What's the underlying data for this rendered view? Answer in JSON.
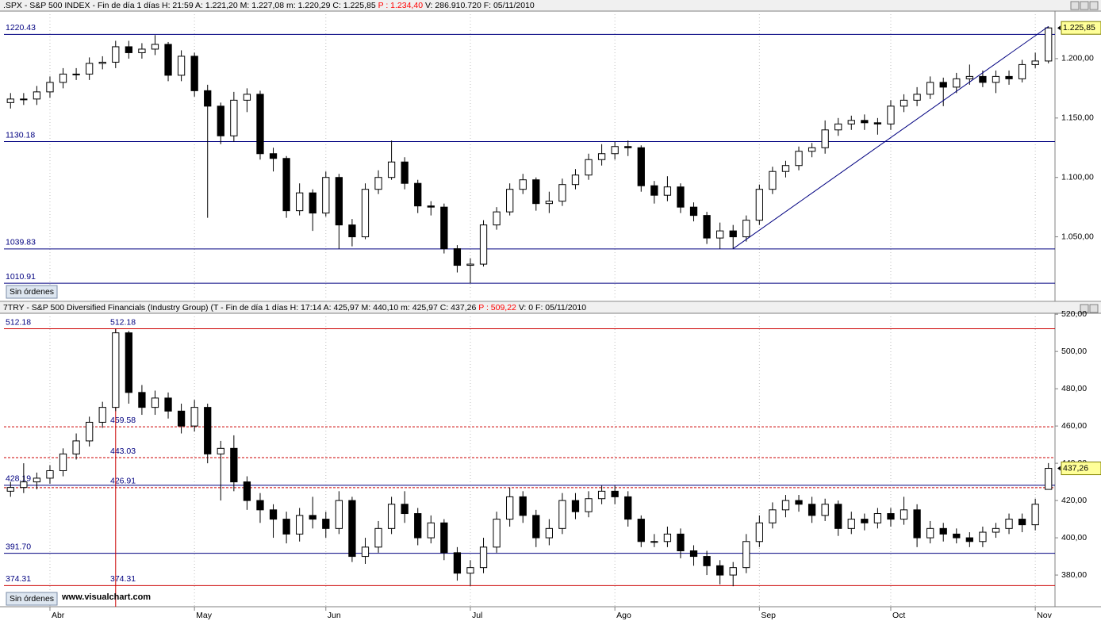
{
  "chart_data": [
    {
      "type": "candlestick",
      "header": [
        {
          "text": ".SPX - S&P 500 INDEX - Fin de día 1 días  H: 21:59  A: 1.221,20  M: 1.227,08  m: 1.220,29  C: 1.225,85  ",
          "color": "#000000"
        },
        {
          "text": "P : 1.234,40",
          "color": "#ff0000"
        },
        {
          "text": "  V: 286.910.720  F: 05/11/2010",
          "color": "#000000"
        }
      ],
      "orders_label": "Sin órdenes",
      "last_label": "1.225,85",
      "trendline": true,
      "ylim": [
        997,
        1240
      ],
      "yticks": [
        {
          "value": 1050,
          "label": "1.050,00"
        },
        {
          "value": 1100,
          "label": "1.100,00"
        },
        {
          "value": 1150,
          "label": "1.150,00"
        },
        {
          "value": 1200,
          "label": "1.200,00"
        }
      ],
      "levels": [
        {
          "value": 1220.43,
          "color": "#000080",
          "style": "solid",
          "position": "left"
        },
        {
          "value": 1130.18,
          "color": "#000080",
          "style": "solid",
          "position": "left"
        },
        {
          "value": 1039.83,
          "color": "#000080",
          "style": "solid",
          "position": "left"
        },
        {
          "value": 1010.91,
          "color": "#000080",
          "style": "solid",
          "position": "left"
        }
      ],
      "open": [
        1163,
        1166,
        1166,
        1172,
        1180,
        1187,
        1187,
        1196,
        1197,
        1210,
        1205,
        1208,
        1212,
        1186,
        1202,
        1173,
        1160,
        1135,
        1165,
        1170,
        1120,
        1116,
        1072,
        1087,
        1070,
        1100,
        1060,
        1050,
        1090,
        1100,
        1113,
        1095,
        1076,
        1075,
        1040,
        1026,
        1027,
        1060,
        1071,
        1090,
        1098,
        1078,
        1080,
        1094,
        1102,
        1115,
        1120,
        1126,
        1125,
        1093,
        1085,
        1092,
        1075,
        1068,
        1049,
        1055,
        1050,
        1064,
        1090,
        1105,
        1110,
        1122,
        1125,
        1140,
        1145,
        1148,
        1146,
        1145,
        1160,
        1165,
        1170,
        1180,
        1176,
        1183,
        1185,
        1180,
        1185,
        1183,
        1195,
        1198
      ],
      "high": [
        1171,
        1171,
        1177,
        1185,
        1192,
        1192,
        1201,
        1202,
        1215,
        1215,
        1213,
        1219.8,
        1214,
        1207,
        1205,
        1178,
        1163,
        1172,
        1175,
        1173,
        1125,
        1118,
        1095,
        1090,
        1105,
        1103,
        1065,
        1095,
        1106,
        1131,
        1117,
        1098,
        1080,
        1078,
        1043,
        1032,
        1064,
        1075,
        1095,
        1103,
        1100,
        1088,
        1099,
        1107,
        1120,
        1128,
        1130,
        1131,
        1127,
        1097,
        1101,
        1095,
        1079,
        1071,
        1062,
        1060,
        1068,
        1094,
        1109,
        1114,
        1126,
        1129,
        1148,
        1150,
        1152,
        1153,
        1150,
        1165,
        1170,
        1176,
        1185,
        1184,
        1188,
        1195,
        1190,
        1190,
        1190,
        1199,
        1205,
        1227.08
      ],
      "low": [
        1158,
        1161,
        1161,
        1167,
        1175,
        1182,
        1182,
        1191,
        1192,
        1200,
        1200,
        1203,
        1181,
        1181,
        1168,
        1066,
        1128,
        1130,
        1155,
        1115,
        1105,
        1066,
        1068,
        1055,
        1067,
        1040,
        1042,
        1048,
        1086,
        1098,
        1090,
        1070,
        1068,
        1036,
        1020,
        1010.91,
        1025,
        1056,
        1068,
        1086,
        1072,
        1070,
        1076,
        1090,
        1098,
        1110,
        1115,
        1118,
        1088,
        1078,
        1080,
        1070,
        1063,
        1044,
        1040,
        1040,
        1046,
        1060,
        1086,
        1100,
        1106,
        1117,
        1120,
        1135,
        1140,
        1140,
        1136,
        1140,
        1155,
        1160,
        1166,
        1160,
        1171,
        1178,
        1176,
        1171,
        1178,
        1180,
        1192,
        1196
      ],
      "close": [
        1166,
        1166,
        1172,
        1180,
        1187,
        1187,
        1196,
        1197,
        1210,
        1205,
        1208,
        1212,
        1186,
        1202,
        1173,
        1160,
        1135,
        1165,
        1170,
        1120,
        1116,
        1072,
        1087,
        1070,
        1100,
        1060,
        1050,
        1090,
        1100,
        1113,
        1095,
        1076,
        1075,
        1040,
        1026,
        1027,
        1060,
        1071,
        1090,
        1098,
        1078,
        1080,
        1094,
        1102,
        1115,
        1120,
        1126,
        1125,
        1093,
        1085,
        1092,
        1075,
        1068,
        1049,
        1055,
        1050,
        1064,
        1090,
        1105,
        1110,
        1122,
        1125,
        1140,
        1145,
        1148,
        1146,
        1145,
        1160,
        1165,
        1170,
        1180,
        1176,
        1183,
        1185,
        1180,
        1185,
        1183,
        1195,
        1198,
        1225.85
      ]
    },
    {
      "type": "candlestick",
      "header": [
        {
          "text": "7TRY - S&P 500 Diversified Financials (Industry Group) (T - Fin de día 1 días  H: 17:14  A: 425,97  M: 440,10  m: 425,97  C: 437,26  ",
          "color": "#000000"
        },
        {
          "text": "P : 509,22",
          "color": "#ff0000"
        },
        {
          "text": "  V: 0  F: 05/11/2010",
          "color": "#000000"
        }
      ],
      "orders_label": "Sin órdenes",
      "watermark": "www.visualchart.com",
      "last_label": "437,26",
      "peak_marker": true,
      "categories": [
        null,
        null,
        null,
        "Abr",
        null,
        null,
        null,
        null,
        null,
        null,
        null,
        null,
        null,
        null,
        "May",
        null,
        null,
        null,
        null,
        null,
        null,
        null,
        null,
        null,
        "Jun",
        null,
        null,
        null,
        null,
        null,
        null,
        null,
        null,
        null,
        null,
        "Jul",
        null,
        null,
        null,
        null,
        null,
        null,
        null,
        null,
        null,
        null,
        "Ago",
        null,
        null,
        null,
        null,
        null,
        null,
        null,
        null,
        null,
        null,
        "Sep",
        null,
        null,
        null,
        null,
        null,
        null,
        null,
        null,
        null,
        "Oct",
        null,
        null,
        null,
        null,
        null,
        null,
        null,
        null,
        null,
        null,
        "Nov",
        null
      ],
      "ylim": [
        363,
        520.5
      ],
      "yticks": [
        {
          "value": 380,
          "label": "380,00"
        },
        {
          "value": 400,
          "label": "400,00"
        },
        {
          "value": 420,
          "label": "420,00"
        },
        {
          "value": 440,
          "label": "440,00"
        },
        {
          "value": 460,
          "label": "460,00"
        },
        {
          "value": 480,
          "label": "480,00"
        },
        {
          "value": 500,
          "label": "500,00"
        },
        {
          "value": 520,
          "label": "520,00"
        }
      ],
      "levels": [
        {
          "value": 512.18,
          "color": "#cc0000",
          "style": "solid",
          "position": "both"
        },
        {
          "value": 459.58,
          "color": "#cc0000",
          "style": "dashed",
          "position": "marker"
        },
        {
          "value": 443.03,
          "color": "#cc0000",
          "style": "dashed",
          "position": "marker"
        },
        {
          "value": 426.91,
          "color": "#cc0000",
          "style": "dashed",
          "position": "marker"
        },
        {
          "value": 428.19,
          "color": "#000080",
          "style": "solid",
          "position": "left"
        },
        {
          "value": 391.7,
          "label": "391.70",
          "color": "#000080",
          "style": "solid",
          "position": "left"
        },
        {
          "value": 374.31,
          "color": "#cc0000",
          "style": "solid",
          "position": "both"
        }
      ],
      "open": [
        425,
        427,
        430,
        432,
        436,
        445,
        452,
        462,
        470,
        510,
        478,
        470,
        475,
        468,
        460,
        470,
        445,
        448,
        430,
        420,
        415,
        410,
        402,
        412,
        410,
        405,
        420,
        390,
        395,
        405,
        418,
        413,
        400,
        408,
        392,
        381,
        384,
        395,
        410,
        422,
        412,
        400,
        405,
        420,
        414,
        421,
        425,
        422,
        410,
        398,
        398,
        402,
        393,
        390,
        385,
        380,
        384,
        398,
        408,
        415,
        420,
        418,
        412,
        418,
        405,
        410,
        408,
        413,
        410,
        415,
        400,
        405,
        402,
        400,
        398,
        403,
        405,
        410,
        407,
        425.97
      ],
      "high": [
        430,
        440,
        435,
        439,
        448,
        456,
        465,
        473,
        512.18,
        511,
        482,
        479,
        478,
        472,
        474,
        472,
        452,
        455,
        433,
        424,
        418,
        414,
        416,
        422,
        414,
        425,
        422,
        400,
        409,
        422,
        425,
        416,
        412,
        410,
        395,
        388,
        400,
        414,
        427,
        425,
        415,
        410,
        424,
        424,
        425,
        428,
        428,
        425,
        412,
        402,
        406,
        405,
        396,
        393,
        388,
        387,
        402,
        412,
        419,
        423,
        423,
        422,
        421,
        420,
        414,
        413,
        416,
        416,
        422,
        418,
        409,
        408,
        405,
        403,
        406,
        408,
        413,
        413,
        421,
        440.1
      ],
      "low": [
        422,
        424,
        426,
        429,
        433,
        442,
        449,
        459,
        468,
        472,
        466,
        466,
        464,
        456,
        457,
        440,
        420,
        425,
        415,
        408,
        400,
        397,
        398,
        405,
        400,
        402,
        387,
        386,
        392,
        402,
        408,
        396,
        397,
        388,
        377,
        374.31,
        381,
        392,
        406,
        408,
        395,
        396,
        402,
        410,
        411,
        418,
        418,
        406,
        395,
        395,
        395,
        389,
        385,
        380,
        375,
        374,
        381,
        395,
        405,
        411,
        414,
        408,
        409,
        401,
        402,
        404,
        405,
        406,
        407,
        395,
        397,
        398,
        397,
        395,
        395,
        400,
        402,
        403,
        404,
        425.97
      ],
      "close": [
        427,
        430,
        432,
        436,
        445,
        452,
        462,
        470,
        510,
        478,
        470,
        475,
        468,
        460,
        470,
        445,
        448,
        430,
        420,
        415,
        410,
        402,
        412,
        410,
        405,
        420,
        390,
        395,
        405,
        418,
        413,
        400,
        408,
        392,
        381,
        384,
        395,
        410,
        422,
        412,
        400,
        405,
        420,
        414,
        421,
        425,
        422,
        410,
        398,
        398,
        402,
        393,
        390,
        385,
        380,
        384,
        398,
        408,
        415,
        420,
        418,
        412,
        418,
        405,
        410,
        408,
        413,
        410,
        415,
        400,
        405,
        402,
        400,
        398,
        403,
        405,
        410,
        407,
        418,
        437.26
      ]
    }
  ]
}
